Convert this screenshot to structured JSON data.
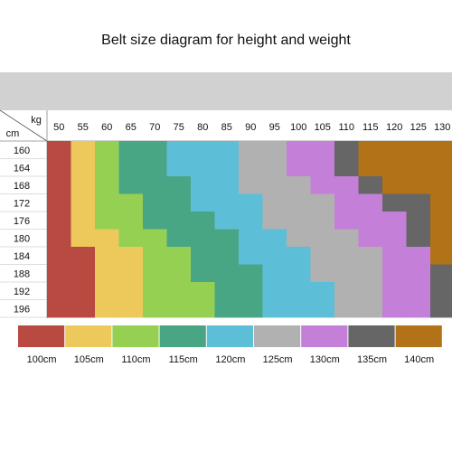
{
  "title": "Belt size diagram for height and weight",
  "chart_data": {
    "type": "heatmap",
    "title": "Belt size diagram for height and weight",
    "x_unit": "kg",
    "y_unit": "cm",
    "weights": [
      "50",
      "55",
      "60",
      "65",
      "70",
      "75",
      "80",
      "85",
      "90",
      "95",
      "100",
      "105",
      "110",
      "115",
      "120",
      "125",
      "130"
    ],
    "heights": [
      "160",
      "164",
      "168",
      "172",
      "176",
      "180",
      "184",
      "188",
      "192",
      "196"
    ],
    "grid": [
      [
        "100cm",
        "105cm",
        "110cm",
        "115cm",
        "115cm",
        "120cm",
        "120cm",
        "120cm",
        "125cm",
        "125cm",
        "130cm",
        "130cm",
        "135cm",
        "140cm",
        "140cm",
        "140cm",
        "140cm"
      ],
      [
        "100cm",
        "105cm",
        "110cm",
        "115cm",
        "115cm",
        "120cm",
        "120cm",
        "120cm",
        "125cm",
        "125cm",
        "130cm",
        "130cm",
        "135cm",
        "140cm",
        "140cm",
        "140cm",
        "140cm"
      ],
      [
        "100cm",
        "105cm",
        "110cm",
        "115cm",
        "115cm",
        "115cm",
        "120cm",
        "120cm",
        "125cm",
        "125cm",
        "125cm",
        "130cm",
        "130cm",
        "135cm",
        "140cm",
        "140cm",
        "140cm"
      ],
      [
        "100cm",
        "105cm",
        "110cm",
        "110cm",
        "115cm",
        "115cm",
        "120cm",
        "120cm",
        "120cm",
        "125cm",
        "125cm",
        "125cm",
        "130cm",
        "130cm",
        "135cm",
        "135cm",
        "140cm"
      ],
      [
        "100cm",
        "105cm",
        "110cm",
        "110cm",
        "115cm",
        "115cm",
        "115cm",
        "120cm",
        "120cm",
        "125cm",
        "125cm",
        "125cm",
        "130cm",
        "130cm",
        "130cm",
        "135cm",
        "140cm"
      ],
      [
        "100cm",
        "105cm",
        "105cm",
        "110cm",
        "110cm",
        "115cm",
        "115cm",
        "115cm",
        "120cm",
        "120cm",
        "125cm",
        "125cm",
        "125cm",
        "130cm",
        "130cm",
        "135cm",
        "140cm"
      ],
      [
        "100cm",
        "100cm",
        "105cm",
        "105cm",
        "110cm",
        "110cm",
        "115cm",
        "115cm",
        "120cm",
        "120cm",
        "120cm",
        "125cm",
        "125cm",
        "125cm",
        "130cm",
        "130cm",
        "140cm"
      ],
      [
        "100cm",
        "100cm",
        "105cm",
        "105cm",
        "110cm",
        "110cm",
        "115cm",
        "115cm",
        "115cm",
        "120cm",
        "120cm",
        "125cm",
        "125cm",
        "125cm",
        "130cm",
        "130cm",
        "135cm"
      ],
      [
        "100cm",
        "100cm",
        "105cm",
        "105cm",
        "110cm",
        "110cm",
        "110cm",
        "115cm",
        "115cm",
        "120cm",
        "120cm",
        "120cm",
        "125cm",
        "125cm",
        "130cm",
        "130cm",
        "135cm"
      ],
      [
        "100cm",
        "100cm",
        "105cm",
        "105cm",
        "110cm",
        "110cm",
        "110cm",
        "115cm",
        "115cm",
        "120cm",
        "120cm",
        "120cm",
        "125cm",
        "125cm",
        "130cm",
        "130cm",
        "135cm"
      ]
    ],
    "legend": [
      {
        "label": "100cm",
        "color": "#b84a42"
      },
      {
        "label": "105cm",
        "color": "#ecc95a"
      },
      {
        "label": "110cm",
        "color": "#96d053"
      },
      {
        "label": "115cm",
        "color": "#49a685"
      },
      {
        "label": "120cm",
        "color": "#5dbfd7"
      },
      {
        "label": "125cm",
        "color": "#b1b1b1"
      },
      {
        "label": "130cm",
        "color": "#c47fd8"
      },
      {
        "label": "135cm",
        "color": "#666666"
      },
      {
        "label": "140cm",
        "color": "#b27318"
      }
    ],
    "header_band_color": "#d1d1d1"
  }
}
